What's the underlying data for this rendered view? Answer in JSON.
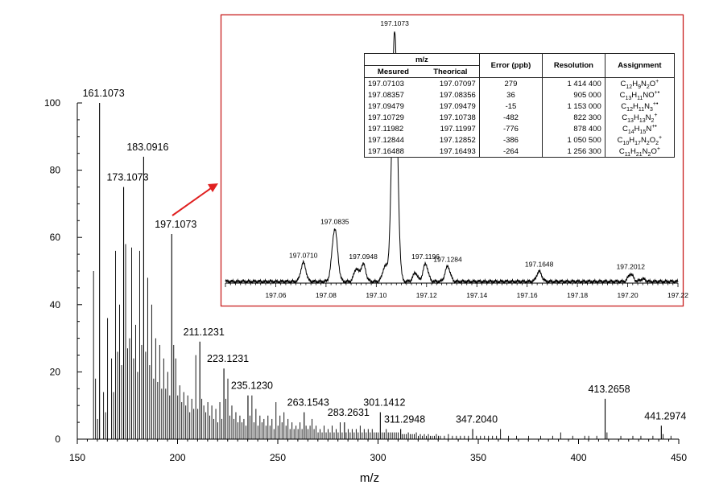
{
  "chart_data": [
    {
      "type": "bar",
      "name": "full-spectrum",
      "xlabel": "m/z",
      "ylabel": "",
      "xlim": [
        150,
        450
      ],
      "ylim": [
        0,
        100
      ],
      "xticks": [
        150,
        200,
        250,
        300,
        350,
        400,
        450
      ],
      "yticks": [
        0,
        20,
        40,
        60,
        80,
        100
      ],
      "labeled_peaks": [
        {
          "x": 161.1073,
          "y": 100,
          "label": "161.1073"
        },
        {
          "x": 183.0916,
          "y": 84,
          "label": "183.0916"
        },
        {
          "x": 173.1073,
          "y": 75,
          "label": "173.1073"
        },
        {
          "x": 197.1073,
          "y": 61,
          "label": "197.1073"
        },
        {
          "x": 211.1231,
          "y": 29,
          "label": "211.1231"
        },
        {
          "x": 223.1231,
          "y": 21,
          "label": "223.1231"
        },
        {
          "x": 235.123,
          "y": 13,
          "label": "235.1230"
        },
        {
          "x": 263.1543,
          "y": 8,
          "label": "263.1543"
        },
        {
          "x": 283.2631,
          "y": 5,
          "label": "283.2631"
        },
        {
          "x": 301.1412,
          "y": 8,
          "label": "301.1412"
        },
        {
          "x": 311.2948,
          "y": 3,
          "label": "311.2948"
        },
        {
          "x": 347.204,
          "y": 3,
          "label": "347.2040"
        },
        {
          "x": 413.2658,
          "y": 12,
          "label": "413.2658"
        },
        {
          "x": 441.2974,
          "y": 4,
          "label": "441.2974"
        }
      ],
      "peaks": [
        [
          158.1,
          50
        ],
        [
          159.1,
          18
        ],
        [
          160.1,
          6
        ],
        [
          163.1,
          14
        ],
        [
          164.1,
          8
        ],
        [
          165.1,
          36
        ],
        [
          167.1,
          24
        ],
        [
          168.1,
          14
        ],
        [
          169.1,
          56
        ],
        [
          170.1,
          26
        ],
        [
          171.1,
          40
        ],
        [
          172.1,
          22
        ],
        [
          174.1,
          58
        ],
        [
          175.1,
          27
        ],
        [
          176.1,
          30
        ],
        [
          177.1,
          57
        ],
        [
          178.1,
          24
        ],
        [
          179.1,
          34
        ],
        [
          180.1,
          20
        ],
        [
          181.1,
          56
        ],
        [
          182.1,
          28
        ],
        [
          184.1,
          26
        ],
        [
          185.1,
          48
        ],
        [
          186.1,
          22
        ],
        [
          187.1,
          40
        ],
        [
          188.1,
          18
        ],
        [
          189.1,
          30
        ],
        [
          190.1,
          17
        ],
        [
          191.1,
          28
        ],
        [
          192.1,
          15
        ],
        [
          193.1,
          24
        ],
        [
          194.1,
          15
        ],
        [
          195.1,
          20
        ],
        [
          196.1,
          13
        ],
        [
          198.1,
          28
        ],
        [
          199.1,
          24
        ],
        [
          200.1,
          13
        ],
        [
          201.1,
          16
        ],
        [
          202.1,
          11
        ],
        [
          203.1,
          14
        ],
        [
          204.1,
          10
        ],
        [
          205.1,
          13
        ],
        [
          206.1,
          8
        ],
        [
          207.1,
          12
        ],
        [
          208.1,
          9
        ],
        [
          209.1,
          25
        ],
        [
          210.1,
          9
        ],
        [
          212.1,
          12
        ],
        [
          213.1,
          10
        ],
        [
          214.1,
          8
        ],
        [
          215.1,
          11
        ],
        [
          216.1,
          7
        ],
        [
          217.1,
          10
        ],
        [
          218.1,
          6
        ],
        [
          219.1,
          9
        ],
        [
          220.1,
          5
        ],
        [
          221.1,
          11
        ],
        [
          222.1,
          6
        ],
        [
          224.1,
          12
        ],
        [
          225.1,
          18
        ],
        [
          226.1,
          7
        ],
        [
          227.1,
          10
        ],
        [
          228.1,
          6
        ],
        [
          229.1,
          8
        ],
        [
          230.1,
          5
        ],
        [
          231.1,
          7
        ],
        [
          232.1,
          5
        ],
        [
          233.1,
          6
        ],
        [
          234.1,
          4
        ],
        [
          236.1,
          7
        ],
        [
          237.1,
          13
        ],
        [
          238.1,
          5
        ],
        [
          239.1,
          9
        ],
        [
          240.1,
          4
        ],
        [
          241.1,
          7
        ],
        [
          242.1,
          5
        ],
        [
          243.1,
          6
        ],
        [
          244.1,
          4
        ],
        [
          245.1,
          7
        ],
        [
          246.1,
          4
        ],
        [
          247.1,
          6
        ],
        [
          248.1,
          3
        ],
        [
          249.1,
          11
        ],
        [
          250.1,
          4
        ],
        [
          251.1,
          7
        ],
        [
          252.1,
          5
        ],
        [
          253.1,
          8
        ],
        [
          254.1,
          4
        ],
        [
          255.1,
          6
        ],
        [
          256.1,
          3
        ],
        [
          257.1,
          5
        ],
        [
          258.1,
          3
        ],
        [
          259.1,
          4
        ],
        [
          260.1,
          3
        ],
        [
          261.1,
          5
        ],
        [
          262.1,
          3
        ],
        [
          264.1,
          4
        ],
        [
          265.1,
          3
        ],
        [
          266.1,
          4
        ],
        [
          267.1,
          6
        ],
        [
          268.1,
          3
        ],
        [
          269.1,
          4
        ],
        [
          270.1,
          2
        ],
        [
          271.1,
          3
        ],
        [
          272.1,
          2
        ],
        [
          273.1,
          4
        ],
        [
          274.1,
          2
        ],
        [
          275.1,
          3
        ],
        [
          276.1,
          2
        ],
        [
          277.1,
          4
        ],
        [
          278.1,
          2
        ],
        [
          279.1,
          3
        ],
        [
          280.1,
          2
        ],
        [
          281.1,
          5
        ],
        [
          282.1,
          2
        ],
        [
          284.1,
          2
        ],
        [
          285.1,
          3
        ],
        [
          286.1,
          2
        ],
        [
          287.1,
          3
        ],
        [
          288.1,
          2
        ],
        [
          289.1,
          3
        ],
        [
          290.1,
          2
        ],
        [
          291.1,
          4
        ],
        [
          292.1,
          2
        ],
        [
          293.1,
          3
        ],
        [
          294.1,
          2
        ],
        [
          295.1,
          3
        ],
        [
          296.1,
          2
        ],
        [
          297.1,
          3
        ],
        [
          298.1,
          2
        ],
        [
          299.1,
          2
        ],
        [
          300.1,
          2
        ],
        [
          302.1,
          2
        ],
        [
          303.1,
          2
        ],
        [
          304.1,
          3
        ],
        [
          305.1,
          2
        ],
        [
          306.1,
          2
        ],
        [
          307.1,
          2
        ],
        [
          308.1,
          2
        ],
        [
          309.1,
          2
        ],
        [
          310.1,
          2
        ],
        [
          312.1,
          1.5
        ],
        [
          313.1,
          1.5
        ],
        [
          314.1,
          1.5
        ],
        [
          315.1,
          2
        ],
        [
          316.1,
          1.5
        ],
        [
          317.1,
          1.5
        ],
        [
          318.1,
          1.5
        ],
        [
          319.1,
          2
        ],
        [
          320.1,
          1
        ],
        [
          321.1,
          1.5
        ],
        [
          322.1,
          1
        ],
        [
          323.1,
          1.5
        ],
        [
          324.1,
          1
        ],
        [
          325.1,
          1.5
        ],
        [
          326.1,
          1
        ],
        [
          327.1,
          1
        ],
        [
          328.1,
          1
        ],
        [
          329.1,
          1.5
        ],
        [
          330.1,
          1
        ],
        [
          331.1,
          1
        ],
        [
          333.1,
          1
        ],
        [
          335.1,
          1.5
        ],
        [
          337.1,
          1
        ],
        [
          339.1,
          1
        ],
        [
          341.1,
          1
        ],
        [
          343.1,
          1
        ],
        [
          345.1,
          1
        ],
        [
          349.1,
          1
        ],
        [
          351.1,
          1
        ],
        [
          353.1,
          1
        ],
        [
          355.1,
          1
        ],
        [
          357.1,
          1
        ],
        [
          359.1,
          1
        ],
        [
          361.1,
          3
        ],
        [
          365.1,
          1
        ],
        [
          369.1,
          1
        ],
        [
          375.1,
          1
        ],
        [
          381.1,
          1
        ],
        [
          387.1,
          1
        ],
        [
          391.1,
          2
        ],
        [
          397.1,
          1
        ],
        [
          403.1,
          1
        ],
        [
          405.1,
          1
        ],
        [
          409.1,
          1
        ],
        [
          414.2,
          2
        ],
        [
          421.1,
          1
        ],
        [
          427.1,
          1
        ],
        [
          431.1,
          1
        ],
        [
          437.1,
          1
        ],
        [
          442.2,
          1.5
        ],
        [
          446.1,
          1
        ]
      ]
    },
    {
      "type": "line",
      "name": "zoom-inset",
      "xlim": [
        197.04,
        197.22
      ],
      "xticks": [
        "197.06",
        "197.08",
        "197.10",
        "197.12",
        "197.14",
        "197.16",
        "197.18",
        "197.20",
        "197.22"
      ],
      "peaks": [
        {
          "x": 197.071,
          "h": 0.075,
          "w": 0.001,
          "label": "197.0710"
        },
        {
          "x": 197.0835,
          "h": 0.21,
          "w": 0.0011,
          "label": "197.0835"
        },
        {
          "x": 197.092,
          "h": 0.05,
          "w": 0.0009,
          "label": ""
        },
        {
          "x": 197.0948,
          "h": 0.07,
          "w": 0.001,
          "label": "197.0948"
        },
        {
          "x": 197.1035,
          "h": 0.06,
          "w": 0.001,
          "label": ""
        },
        {
          "x": 197.1073,
          "h": 1.0,
          "w": 0.0011,
          "label": "197.1073"
        },
        {
          "x": 197.1155,
          "h": 0.035,
          "w": 0.0009,
          "label": ""
        },
        {
          "x": 197.1196,
          "h": 0.07,
          "w": 0.001,
          "label": "197.1196"
        },
        {
          "x": 197.1284,
          "h": 0.06,
          "w": 0.001,
          "label": "197.1284"
        },
        {
          "x": 197.1648,
          "h": 0.04,
          "w": 0.001,
          "label": "197.1648"
        },
        {
          "x": 197.2012,
          "h": 0.03,
          "w": 0.001,
          "label": "197.2012"
        },
        {
          "x": 197.206,
          "h": 0.01,
          "w": 0.001,
          "label": ""
        }
      ]
    }
  ],
  "table": {
    "headers": {
      "mz": "m/z",
      "measured": "Mesured",
      "theoretical": "Theorical",
      "error": "Error (ppb)",
      "resolution": "Resolution",
      "assignment": "Assignment"
    },
    "rows": [
      {
        "measured": "197.07103",
        "theoretical": "197.07097",
        "error": "279",
        "resolution": "1 414 400",
        "formula": [
          [
            "C",
            "n"
          ],
          [
            "12",
            "sub"
          ],
          [
            "H",
            "n"
          ],
          [
            "9",
            "sub"
          ],
          [
            "N",
            "n"
          ],
          [
            "2",
            "sub"
          ],
          [
            "O",
            "n"
          ],
          [
            "+",
            "sup"
          ]
        ]
      },
      {
        "measured": "197.08357",
        "theoretical": "197.08356",
        "error": "36",
        "resolution": "905 000",
        "formula": [
          [
            "C",
            "n"
          ],
          [
            "13",
            "sub"
          ],
          [
            "H",
            "n"
          ],
          [
            "11",
            "sub"
          ],
          [
            "NO",
            "n"
          ],
          [
            "+•",
            "sup"
          ]
        ]
      },
      {
        "measured": "197.09479",
        "theoretical": "197.09479",
        "error": "-15",
        "resolution": "1 153 000",
        "formula": [
          [
            "C",
            "n"
          ],
          [
            "12",
            "sub"
          ],
          [
            "H",
            "n"
          ],
          [
            "11",
            "sub"
          ],
          [
            "N",
            "n"
          ],
          [
            "3",
            "sub"
          ],
          [
            "+•",
            "sup"
          ]
        ]
      },
      {
        "measured": "197.10729",
        "theoretical": "197.10738",
        "error": "-482",
        "resolution": "822 300",
        "formula": [
          [
            "C",
            "n"
          ],
          [
            "13",
            "sub"
          ],
          [
            "H",
            "n"
          ],
          [
            "13",
            "sub"
          ],
          [
            "N",
            "n"
          ],
          [
            "2",
            "sub"
          ],
          [
            "+",
            "sup"
          ]
        ]
      },
      {
        "measured": "197.11982",
        "theoretical": "197.11997",
        "error": "-776",
        "resolution": "878 400",
        "formula": [
          [
            "C",
            "n"
          ],
          [
            "14",
            "sub"
          ],
          [
            "H",
            "n"
          ],
          [
            "15",
            "sub"
          ],
          [
            "N",
            "n"
          ],
          [
            "+•",
            "sup"
          ]
        ]
      },
      {
        "measured": "197.12844",
        "theoretical": "197.12852",
        "error": "-386",
        "resolution": "1 050 500",
        "formula": [
          [
            "C",
            "n"
          ],
          [
            "10",
            "sub"
          ],
          [
            "H",
            "n"
          ],
          [
            "17",
            "sub"
          ],
          [
            "N",
            "n"
          ],
          [
            "2",
            "sub"
          ],
          [
            "O",
            "n"
          ],
          [
            "2",
            "sub"
          ],
          [
            "+",
            "sup"
          ]
        ]
      },
      {
        "measured": "197.16488",
        "theoretical": "197.16493",
        "error": "-264",
        "resolution": "1 256 300",
        "formula": [
          [
            "C",
            "n"
          ],
          [
            "11",
            "sub"
          ],
          [
            "H",
            "n"
          ],
          [
            "21",
            "sub"
          ],
          [
            "N",
            "n"
          ],
          [
            "2",
            "sub"
          ],
          [
            "O",
            "n"
          ],
          [
            "+",
            "sup"
          ]
        ]
      }
    ]
  },
  "colors": {
    "inset_border": "#c81e1e",
    "arrow": "#e02020",
    "spectrum": "#000000"
  }
}
